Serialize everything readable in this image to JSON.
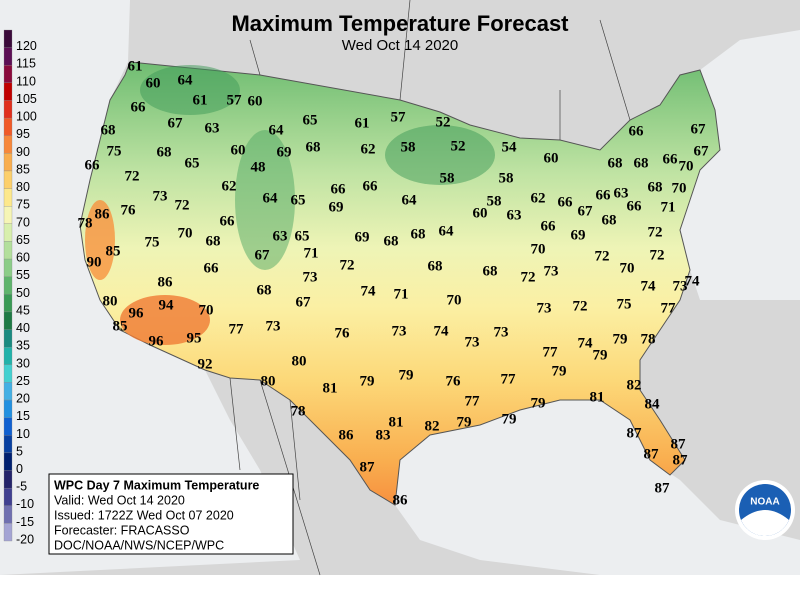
{
  "header": {
    "title": "Maximum Temperature Forecast",
    "subtitle": "Wed Oct 14 2020"
  },
  "legend": {
    "values": [
      120,
      115,
      110,
      105,
      100,
      95,
      90,
      85,
      80,
      75,
      70,
      65,
      60,
      55,
      50,
      45,
      40,
      35,
      30,
      25,
      20,
      15,
      10,
      5,
      0,
      -5,
      -10,
      -15,
      -20
    ],
    "colors": [
      "#3a0a3a",
      "#5c0f55",
      "#8a0a3c",
      "#c00000",
      "#e0301e",
      "#f05a28",
      "#f7883c",
      "#f9ae4f",
      "#fccf6b",
      "#fde88c",
      "#f6f5b6",
      "#d8efad",
      "#b3df9c",
      "#8ccd88",
      "#5fb46c",
      "#3a9a55",
      "#1f7a45",
      "#1a8a80",
      "#22b2aa",
      "#44d0d0",
      "#44b0e4",
      "#2290e0",
      "#1060d0",
      "#0840a0",
      "#002070",
      "#24246a",
      "#404090",
      "#7070b0",
      "#a4a4d4"
    ]
  },
  "map": {
    "temperatures": [
      61,
      60,
      64,
      66,
      61,
      57,
      60,
      67,
      63,
      64,
      65,
      61,
      57,
      52,
      68,
      75,
      68,
      65,
      60,
      48,
      69,
      68,
      62,
      58,
      52,
      54,
      60,
      66,
      67,
      66,
      72,
      62,
      66,
      66,
      58,
      58,
      68,
      66,
      70,
      67,
      73,
      72,
      64,
      65,
      69,
      64,
      58,
      60,
      63,
      62,
      66,
      67,
      66,
      63,
      66,
      68,
      68,
      70,
      71,
      78,
      86,
      76,
      66,
      70,
      68,
      63,
      65,
      69,
      68,
      68,
      64,
      70,
      66,
      69,
      68,
      72,
      85,
      75,
      67,
      71,
      72,
      68,
      68,
      72,
      73,
      72,
      70,
      72,
      74,
      90,
      66,
      73,
      68,
      74,
      71,
      70,
      74,
      73,
      86,
      80,
      94,
      96,
      70,
      67,
      73,
      72,
      75,
      77,
      85,
      77,
      73,
      76,
      73,
      74,
      73,
      73,
      79,
      78,
      96,
      95,
      77,
      74,
      79,
      92,
      80,
      79,
      79,
      79,
      76,
      77,
      81,
      80,
      82,
      77,
      79,
      81,
      84,
      78,
      81,
      79,
      82,
      79,
      87,
      86,
      83,
      87,
      87,
      87,
      87,
      86,
      87
    ]
  },
  "info_box": {
    "title": "WPC Day 7 Maximum Temperature",
    "lines": [
      "Valid: Wed Oct 14 2020",
      "Issued: 1722Z Wed Oct 07 2020",
      "Forecaster: FRACASSO",
      "DOC/NOAA/NWS/NCEP/WPC"
    ]
  },
  "logo": {
    "label": "NOAA"
  }
}
